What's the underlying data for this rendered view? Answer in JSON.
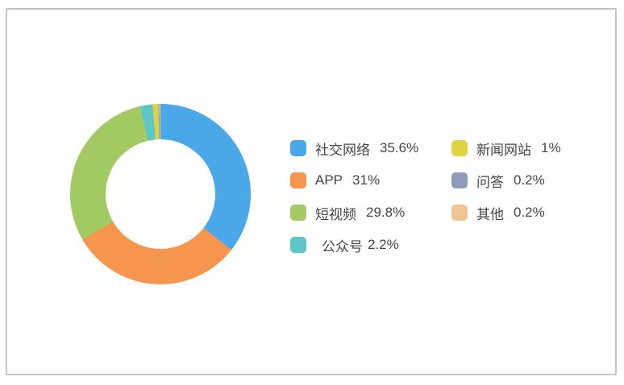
{
  "page": {
    "background_color": "#ffffff",
    "card_border_color": "#c3c3c3"
  },
  "chart_data": {
    "type": "pie",
    "subtype": "donut",
    "title": "",
    "start_angle": "top",
    "direction": "clockwise",
    "inner_radius_ratio": 0.61,
    "legend_position": "right-center",
    "legend_columns": 2,
    "hole_color": "#ffffff",
    "items": [
      {
        "name": "社交网络",
        "value": 35.6,
        "value_label": "35.6%",
        "color": "#4aa7e8"
      },
      {
        "name": "APP",
        "value": 31,
        "value_label": "31%",
        "color": "#f6954e"
      },
      {
        "name": "短视频",
        "value": 29.8,
        "value_label": "29.8%",
        "color": "#a3c962"
      },
      {
        "name": "公众号",
        "value": 2.2,
        "value_label": "2.2%",
        "color": "#5ec5c8"
      },
      {
        "name": "新闻网站",
        "value": 1,
        "value_label": "1%",
        "color": "#e0d33f"
      },
      {
        "name": "问答",
        "value": 0.2,
        "value_label": "0.2%",
        "color": "#8f9bba"
      },
      {
        "name": "其他",
        "value": 0.2,
        "value_label": "0.2%",
        "color": "#f2c492"
      }
    ]
  }
}
